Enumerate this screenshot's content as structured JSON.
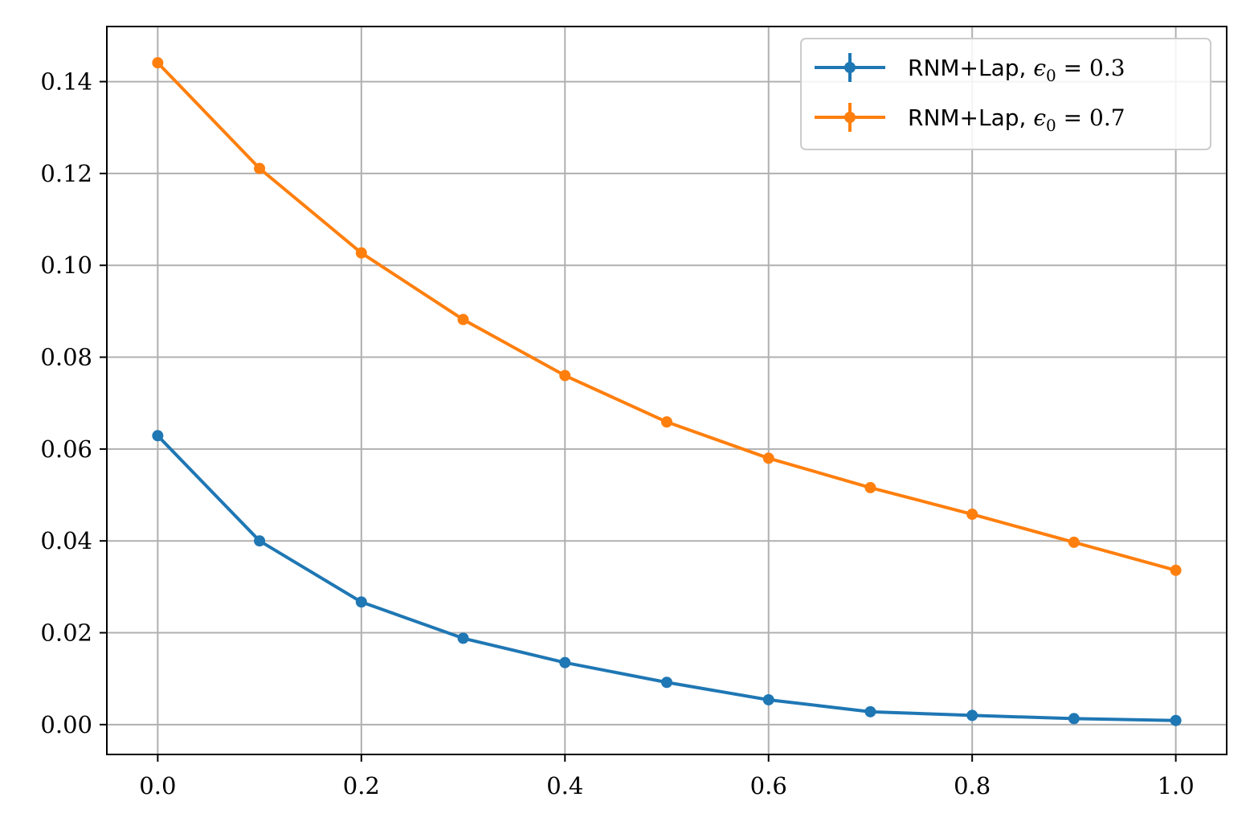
{
  "chart_data": {
    "type": "line",
    "title": "",
    "xlabel": "",
    "ylabel": "",
    "xlim": [
      -0.05,
      1.05
    ],
    "ylim": [
      -0.0065,
      0.152
    ],
    "grid": true,
    "legend_position": "top-right",
    "x_ticks": [
      "0.0",
      "0.2",
      "0.4",
      "0.6",
      "0.8",
      "1.0"
    ],
    "y_ticks": [
      "0.00",
      "0.02",
      "0.04",
      "0.06",
      "0.08",
      "0.10",
      "0.12",
      "0.14"
    ],
    "x": [
      0.0,
      0.1,
      0.2,
      0.3,
      0.4,
      0.5,
      0.6,
      0.7,
      0.8,
      0.9,
      1.0
    ],
    "series": [
      {
        "name_text": "RNM+Lap, ",
        "name_symbol": "ϵ",
        "name_subscript": "0",
        "name_value": " = 0.3",
        "color": "#1f77b4",
        "values": [
          0.0629,
          0.04,
          0.0267,
          0.0188,
          0.0135,
          0.0092,
          0.0054,
          0.0028,
          0.002,
          0.0013,
          0.0009
        ]
      },
      {
        "name_text": "RNM+Lap, ",
        "name_symbol": "ϵ",
        "name_subscript": "0",
        "name_value": " = 0.7",
        "color": "#ff7f0e",
        "values": [
          0.1441,
          0.1211,
          0.1027,
          0.0882,
          0.076,
          0.0659,
          0.058,
          0.0516,
          0.0458,
          0.0397,
          0.0336
        ]
      }
    ]
  }
}
